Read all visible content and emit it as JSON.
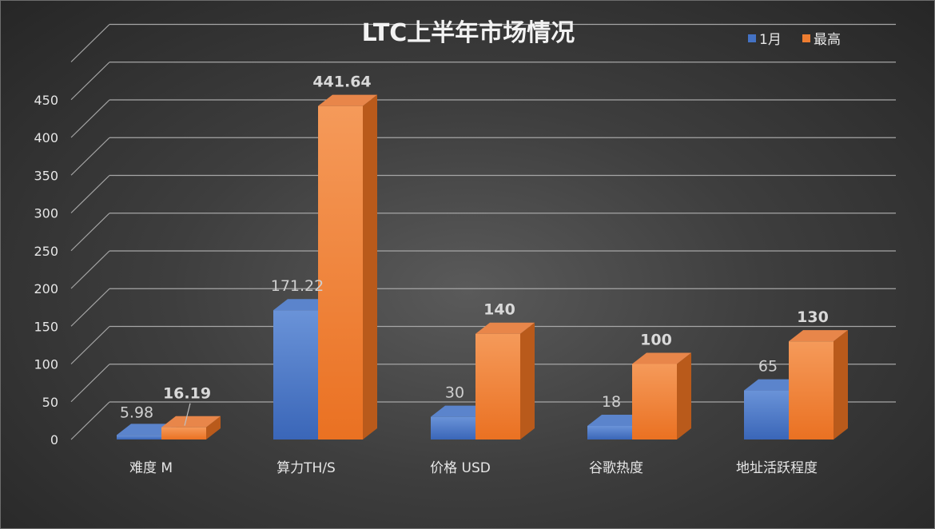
{
  "chart_data": {
    "type": "bar",
    "style": "3d-clustered-column",
    "title": "LTC上半年市场情况",
    "categories": [
      "难度 M",
      "算力TH/S",
      "价格 USD",
      "谷歌热度",
      "地址活跃程度"
    ],
    "series": [
      {
        "name": "1月",
        "values": [
          5.98,
          171.22,
          30,
          18,
          65
        ],
        "labels": [
          "5.98",
          "171.22",
          "30",
          "18",
          "65"
        ]
      },
      {
        "name": "最高",
        "values": [
          16.19,
          441.64,
          140,
          100,
          130
        ],
        "labels": [
          "16.19",
          "441.64",
          "140",
          "100",
          "130"
        ]
      }
    ],
    "yticks": [
      "0",
      "50",
      "100",
      "150",
      "200",
      "250",
      "300",
      "350",
      "400",
      "450"
    ],
    "ylim": [
      0,
      500
    ],
    "grid": true,
    "legend_position": "top-right",
    "colors": {
      "1月": "#4472c4",
      "最高": "#ed7d31"
    }
  }
}
